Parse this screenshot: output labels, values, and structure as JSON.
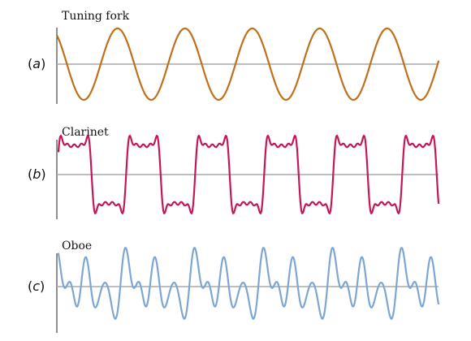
{
  "panels": [
    {
      "id": "a",
      "title": "Tuning fork",
      "label_open": "(",
      "label_letter": "a",
      "label_close": ")",
      "color": "#c0701c"
    },
    {
      "id": "b",
      "title": "Clarinet",
      "label_open": "(",
      "label_letter": "b",
      "label_close": ")",
      "color": "#c2185b"
    },
    {
      "id": "c",
      "title": "Oboe",
      "label_open": "(",
      "label_letter": "c",
      "label_close": ")",
      "color": "#7ea6d3"
    }
  ]
}
